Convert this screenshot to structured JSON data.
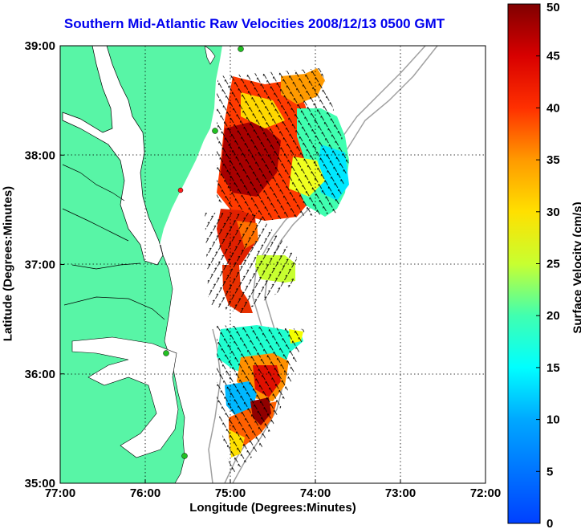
{
  "title": "Southern Mid-Atlantic Raw Velocities 2008/12/13 0500 GMT",
  "xlabel": "Longitude (Degrees:Minutes)",
  "ylabel": "Latitude (Degrees:Minutes)",
  "colorbar_label": "Surface Velocity (cm/s)",
  "colors": {
    "land": "#58f5a6",
    "title": "#0000ee",
    "bathymetry": "#a0a0a0"
  },
  "chart_data": {
    "type": "heatmap",
    "title": "Southern Mid-Atlantic Raw Velocities 2008/12/13 0500 GMT",
    "xlabel": "Longitude (Degrees:Minutes)",
    "ylabel": "Latitude (Degrees:Minutes)",
    "x_ticks": [
      "77:00",
      "76:00",
      "75:00",
      "74:00",
      "73:00",
      "72:00"
    ],
    "y_ticks": [
      "39:00",
      "38:00",
      "37:00",
      "36:00",
      "35:00"
    ],
    "xlim": [
      -77,
      -72
    ],
    "ylim": [
      35,
      39
    ],
    "colorbar": {
      "label": "Surface Velocity (cm/s)",
      "range": [
        0,
        50
      ],
      "ticks": [
        "0",
        "5",
        "10",
        "15",
        "20",
        "25",
        "30",
        "35",
        "40",
        "45",
        "50"
      ],
      "colormap": "jet"
    },
    "grid": true,
    "legend": "none"
  }
}
